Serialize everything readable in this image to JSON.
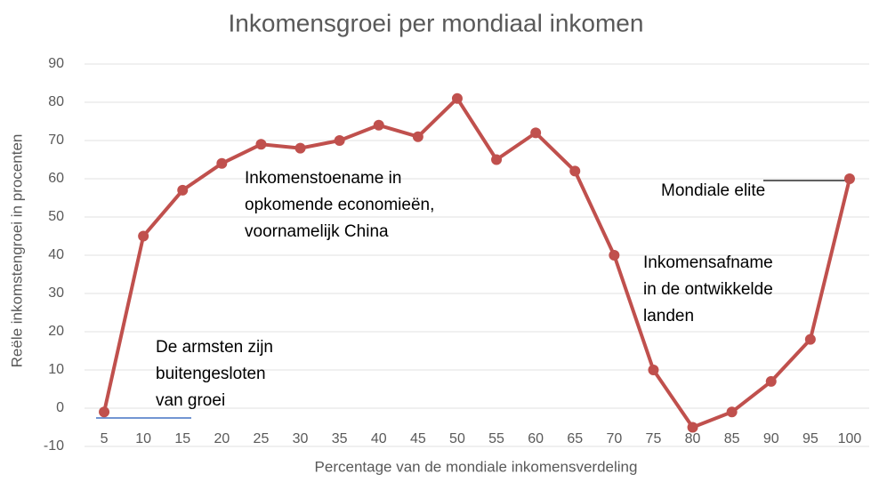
{
  "chart_data": {
    "type": "line",
    "title": "Inkomensgroei per mondiaal inkomen",
    "x_label": "Percentage van de mondiale inkomensverdeling",
    "y_label": "Reële inkomstengroei in procenten",
    "categories": [
      5,
      10,
      15,
      20,
      25,
      30,
      35,
      40,
      45,
      50,
      55,
      60,
      65,
      70,
      75,
      80,
      85,
      90,
      95,
      100
    ],
    "series": [
      {
        "color": "#c0504d",
        "values": [
          -1,
          45,
          57,
          64,
          69,
          68,
          70,
          74,
          71,
          81,
          65,
          72,
          62,
          40,
          10,
          -5,
          -1,
          7,
          18,
          60
        ]
      }
    ],
    "ylim": [
      -10,
      90
    ],
    "yticks": [
      -10,
      0,
      10,
      20,
      30,
      40,
      50,
      60,
      70,
      80,
      90
    ],
    "grid": true,
    "annotations": [
      {
        "lines": [
          "Inkomenstoename in",
          "opkomende economieën,",
          "voornamelijk China"
        ]
      },
      {
        "lines": [
          "De armsten zijn",
          "buitengesloten",
          "van groei"
        ]
      },
      {
        "lines": [
          "Inkomensafname",
          "in de ontwikkelde",
          "landen"
        ]
      },
      {
        "lines": [
          "Mondiale elite"
        ]
      }
    ]
  }
}
